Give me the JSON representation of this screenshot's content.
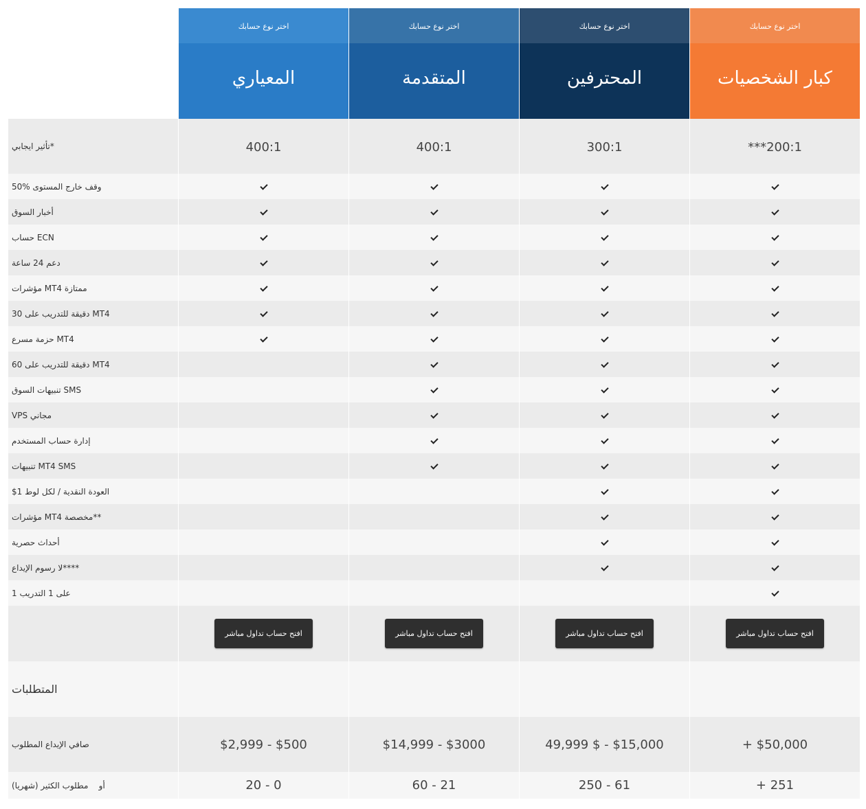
{
  "header": {
    "choose_label": "اختر نوع حسابك",
    "plans": [
      "المعياري",
      "المتقدمة",
      "المحترفين",
      "كبار الشخصيات"
    ]
  },
  "leverage": {
    "label": "تأثير ايجابي*",
    "values": [
      "400:1",
      "400:1",
      "300:1",
      "***200:1"
    ]
  },
  "features": [
    {
      "label": "50% وقف خارج المستوى",
      "checks": [
        true,
        true,
        true,
        true
      ]
    },
    {
      "label": "أخبار السوق",
      "checks": [
        true,
        true,
        true,
        true
      ]
    },
    {
      "label": "حساب ECN",
      "checks": [
        true,
        true,
        true,
        true
      ]
    },
    {
      "label": "دعم 24 ساعة",
      "checks": [
        true,
        true,
        true,
        true
      ]
    },
    {
      "label": "مؤشرات MT4 ممتازة",
      "checks": [
        true,
        true,
        true,
        true
      ]
    },
    {
      "label": "30 دقيقة للتدريب على MT4",
      "checks": [
        true,
        true,
        true,
        true
      ]
    },
    {
      "label": "حزمة مسرع MT4",
      "checks": [
        true,
        true,
        true,
        true
      ]
    },
    {
      "label": "60 دقيقة للتدريب على MT4",
      "checks": [
        false,
        true,
        true,
        true
      ]
    },
    {
      "label": "تنبيهات السوق SMS",
      "checks": [
        false,
        true,
        true,
        true
      ]
    },
    {
      "label": "VPS مجاني",
      "checks": [
        false,
        true,
        true,
        true
      ]
    },
    {
      "label": "إدارة حساب المستخدم",
      "checks": [
        false,
        true,
        true,
        true
      ]
    },
    {
      "label": "تنبيهات MT4 SMS",
      "checks": [
        false,
        true,
        true,
        true
      ]
    },
    {
      "label": "$1 العودة النقدية / لكل لوط",
      "checks": [
        false,
        false,
        true,
        true
      ]
    },
    {
      "label": "مؤشرات MT4 مخصصة**",
      "checks": [
        false,
        false,
        true,
        true
      ]
    },
    {
      "label": "أحداث حصرية",
      "checks": [
        false,
        false,
        true,
        true
      ]
    },
    {
      "label": "لا رسوم الإيداع****",
      "checks": [
        false,
        false,
        true,
        true
      ]
    },
    {
      "label": "1 على 1 التدريب",
      "checks": [
        false,
        false,
        false,
        true
      ]
    }
  ],
  "buttons": {
    "label": "افتح حساب تداول مباشر"
  },
  "requirements": {
    "title": "المتطلبات",
    "deposit_label": "صافي الإيداع المطلوب",
    "deposit_values": [
      "$2,999 - $500",
      "$14,999 - $3000",
      "49,999 $ - $15,000",
      "+ $50,000"
    ],
    "volume_label": "أو    مطلوب الكثير (شهريا)",
    "volume_values": [
      "20 - 0",
      "60 - 21",
      "250 - 61",
      "+ 251"
    ]
  },
  "colors": {
    "standard": "#2a7cc7",
    "advanced": "#1c5e9e",
    "professional": "#0d3358",
    "vip": "#f47a34",
    "button": "#2f2f2f"
  }
}
